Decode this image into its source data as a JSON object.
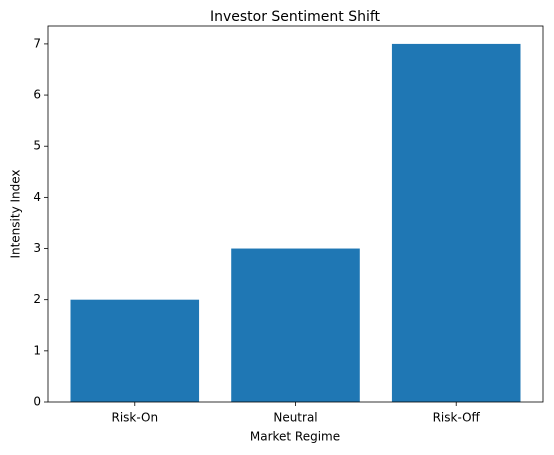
{
  "chart_data": {
    "type": "bar",
    "title": "Investor Sentiment Shift",
    "x_label": "Market Regime",
    "y_label": "Intensity Index",
    "categories": [
      "Risk-On",
      "Neutral",
      "Risk-Off"
    ],
    "values": [
      2,
      3,
      7
    ],
    "color": "#1f77b4",
    "ylim": [
      0,
      7.35
    ],
    "yticks": [
      0,
      1,
      2,
      3,
      4,
      5,
      6,
      7
    ],
    "grid": false
  }
}
